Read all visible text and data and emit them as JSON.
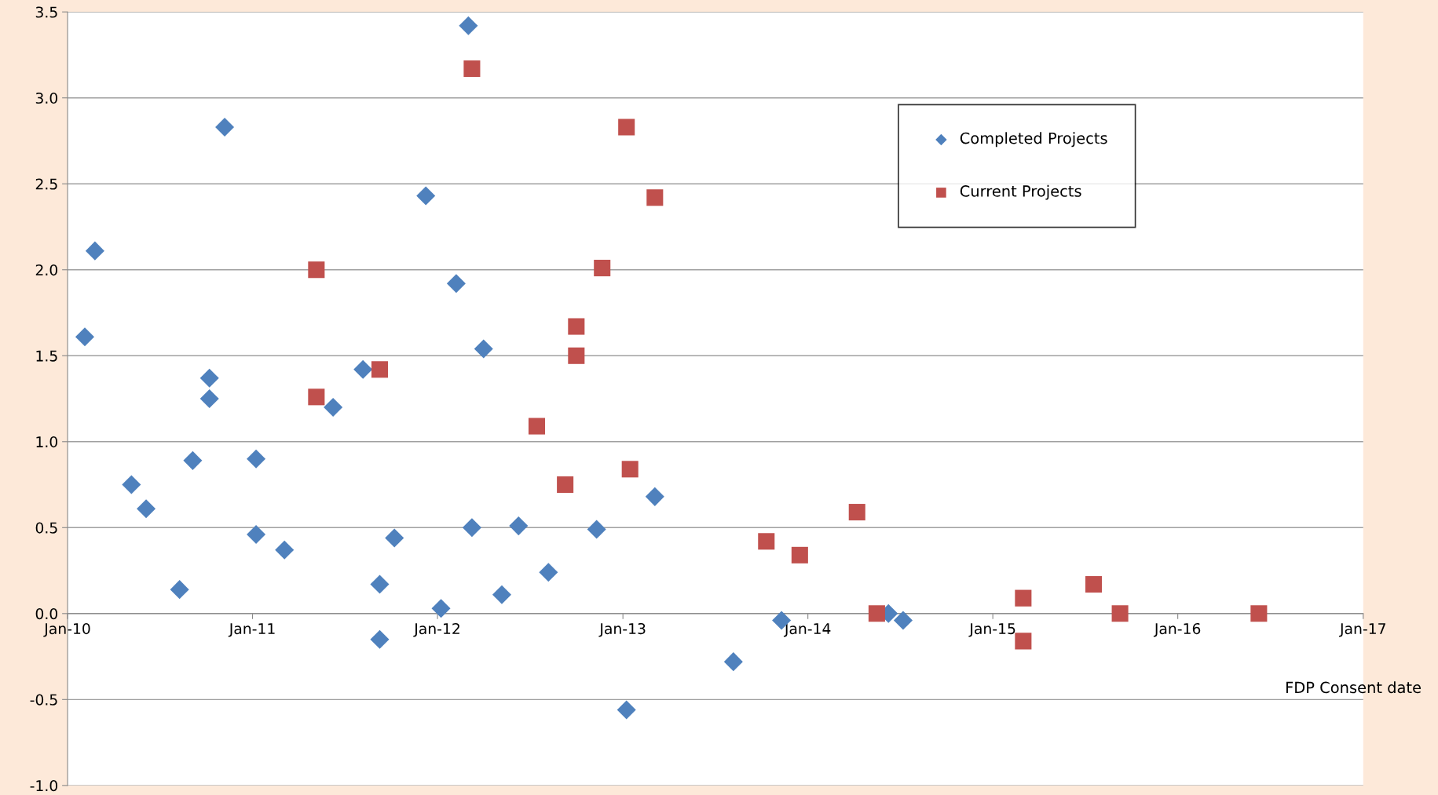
{
  "chart_data": {
    "type": "scatter",
    "xlabel": "FDP Consent date",
    "series": [
      {
        "name": "Completed Projects",
        "color": "#4f81bd",
        "marker": "diamond",
        "x": [
          "2010-02-04",
          "2010-02-24",
          "2010-05-07",
          "2010-06-05",
          "2010-08-10",
          "2010-09-05",
          "2010-10-08",
          "2010-10-08",
          "2010-11-07",
          "2011-01-08",
          "2011-01-08",
          "2011-03-05",
          "2011-06-09",
          "2011-08-07",
          "2011-09-09",
          "2011-09-09",
          "2011-10-08",
          "2011-12-09",
          "2012-01-08",
          "2012-02-07",
          "2012-03-02",
          "2012-03-09",
          "2012-04-01",
          "2012-05-07",
          "2012-06-09",
          "2012-08-07",
          "2012-11-10",
          "2013-01-08",
          "2013-03-05",
          "2013-08-07",
          "2013-11-10",
          "2014-06-09",
          "2014-07-08"
        ],
        "values": [
          1.61,
          2.11,
          0.75,
          0.61,
          0.14,
          0.89,
          1.37,
          1.25,
          2.83,
          0.9,
          0.46,
          0.37,
          1.2,
          1.42,
          0.17,
          -0.15,
          0.44,
          2.43,
          0.03,
          1.92,
          3.42,
          0.5,
          1.54,
          0.11,
          0.51,
          0.24,
          0.49,
          -0.56,
          0.68,
          -0.28,
          -0.04,
          0.0,
          -0.04
        ]
      },
      {
        "name": "Current Projects",
        "color": "#c0504d",
        "marker": "square",
        "x": [
          "2011-05-07",
          "2011-05-07",
          "2011-09-09",
          "2012-03-09",
          "2012-07-15",
          "2012-09-09",
          "2012-10-01",
          "2012-10-01",
          "2012-11-21",
          "2013-01-08",
          "2013-01-15",
          "2013-03-05",
          "2013-10-11",
          "2013-12-16",
          "2014-04-08",
          "2014-05-17",
          "2015-03-02",
          "2015-03-02",
          "2015-07-19",
          "2015-09-09",
          "2016-06-09"
        ],
        "values": [
          2.0,
          1.26,
          1.42,
          3.17,
          1.09,
          0.75,
          1.67,
          1.5,
          2.01,
          2.83,
          0.84,
          2.42,
          0.42,
          0.34,
          0.59,
          0.0,
          0.09,
          -0.16,
          0.17,
          0.0,
          0.0
        ]
      }
    ],
    "xlim": [
      "2010-01-01",
      "2017-01-01"
    ],
    "xticks": [
      {
        "value": "2010-01-01",
        "label": "Jan-10"
      },
      {
        "value": "2011-01-01",
        "label": "Jan-11"
      },
      {
        "value": "2012-01-01",
        "label": "Jan-12"
      },
      {
        "value": "2013-01-01",
        "label": "Jan-13"
      },
      {
        "value": "2014-01-01",
        "label": "Jan-14"
      },
      {
        "value": "2015-01-01",
        "label": "Jan-15"
      },
      {
        "value": "2016-01-01",
        "label": "Jan-16"
      },
      {
        "value": "2017-01-01",
        "label": "Jan-17"
      }
    ],
    "ylim": [
      -1.0,
      3.5
    ],
    "yticks": [
      {
        "value": -1.0,
        "label": "-1.0"
      },
      {
        "value": -0.5,
        "label": "-0.5"
      },
      {
        "value": 0.0,
        "label": "0.0"
      },
      {
        "value": 0.5,
        "label": "0.5"
      },
      {
        "value": 1.0,
        "label": "1.0"
      },
      {
        "value": 1.5,
        "label": "1.5"
      },
      {
        "value": 2.0,
        "label": "2.0"
      },
      {
        "value": 2.5,
        "label": "2.5"
      },
      {
        "value": 3.0,
        "label": "3.0"
      },
      {
        "value": 3.5,
        "label": "3.5"
      }
    ],
    "grid": "y",
    "legend": "top right"
  }
}
